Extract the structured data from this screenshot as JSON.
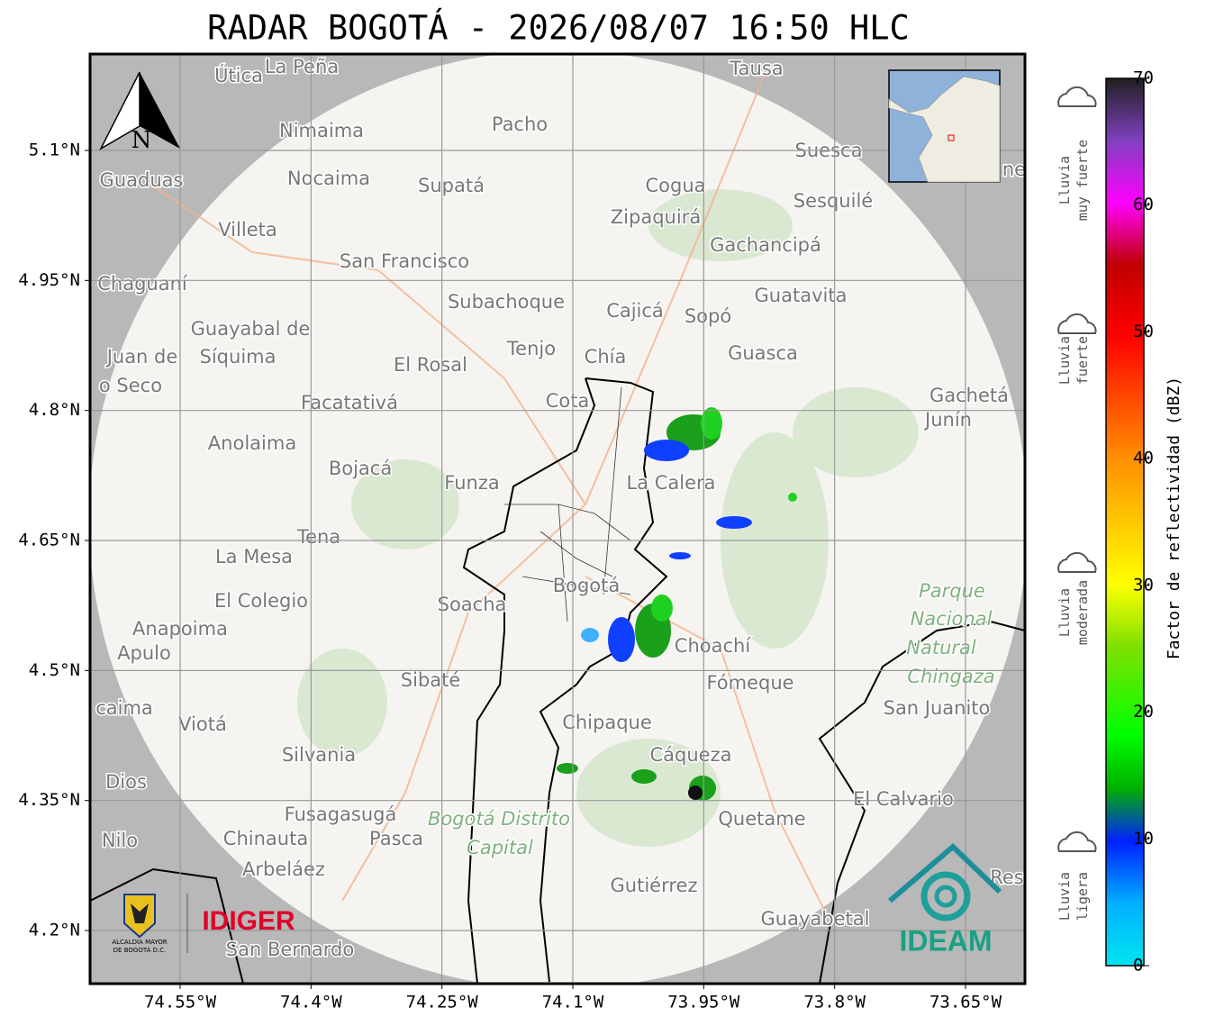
{
  "title": "RADAR BOGOTÁ - 2026/08/07 16:50 HLC",
  "north": "N",
  "lat_ticks": [
    {
      "value": 5.1,
      "label": "5.1°N"
    },
    {
      "value": 4.95,
      "label": "4.95°N"
    },
    {
      "value": 4.8,
      "label": "4.8°N"
    },
    {
      "value": 4.65,
      "label": "4.65°N"
    },
    {
      "value": 4.5,
      "label": "4.5°N"
    },
    {
      "value": 4.35,
      "label": "4.35°N"
    },
    {
      "value": 4.2,
      "label": "4.2°N"
    }
  ],
  "lon_ticks": [
    {
      "value": -74.55,
      "label": "74.55°W"
    },
    {
      "value": -74.4,
      "label": "74.4°W"
    },
    {
      "value": -74.25,
      "label": "74.25°W"
    },
    {
      "value": -74.1,
      "label": "74.1°W"
    },
    {
      "value": -73.95,
      "label": "73.95°W"
    },
    {
      "value": -73.8,
      "label": "73.8°W"
    },
    {
      "value": -73.65,
      "label": "73.65°W"
    }
  ],
  "colorbar": {
    "label": "Factor de reflectividad (dBZ)",
    "ticks": [
      0,
      10,
      20,
      30,
      40,
      50,
      60,
      70
    ]
  },
  "legend": [
    {
      "lines": [
        "Lluvia",
        "muy fuerte"
      ]
    },
    {
      "lines": [
        "Lluvia",
        "fuerte"
      ]
    },
    {
      "lines": [
        "Lluvia",
        "moderada"
      ]
    },
    {
      "lines": [
        "Lluvia",
        "ligera"
      ]
    }
  ],
  "logos": {
    "idiger": "IDIGER",
    "alcaldia": [
      "ALCALDÍA MAYOR",
      "DE BOGOTÁ D.C."
    ],
    "ideam": "IDEAM"
  },
  "places": [
    {
      "label": "Útica"
    },
    {
      "label": "La Peña"
    },
    {
      "label": "Tausa"
    },
    {
      "label": "Pacho"
    },
    {
      "label": "Nimaima"
    },
    {
      "label": "Guaduas"
    },
    {
      "label": "Nocaima"
    },
    {
      "label": "Supatá"
    },
    {
      "label": "Cogua"
    },
    {
      "label": "Suesca"
    },
    {
      "label": "Sesquilé"
    },
    {
      "label": "Zipaquirá"
    },
    {
      "label": "Villeta"
    },
    {
      "label": "Gachancipá"
    },
    {
      "label": "San Francisco"
    },
    {
      "label": "Chaguaní"
    },
    {
      "label": "Guatavita"
    },
    {
      "label": "Subachoque"
    },
    {
      "label": "Cajicá"
    },
    {
      "label": "Sopó"
    },
    {
      "label": "Guayabal de"
    },
    {
      "label": "Síquima"
    },
    {
      "label": "Juan de"
    },
    {
      "label": "o Seco"
    },
    {
      "label": "Tenjo"
    },
    {
      "label": "Chía"
    },
    {
      "label": "Guasca"
    },
    {
      "label": "El Rosal"
    },
    {
      "label": "Facatativá"
    },
    {
      "label": "Cota"
    },
    {
      "label": "Gachetá"
    },
    {
      "label": "Junín"
    },
    {
      "label": "Anolaima"
    },
    {
      "label": "Bojacá"
    },
    {
      "label": "Funza"
    },
    {
      "label": "La Calera"
    },
    {
      "label": "Tena"
    },
    {
      "label": "La Mesa"
    },
    {
      "label": "Bogotá"
    },
    {
      "label": "El Colegio"
    },
    {
      "label": "Soacha"
    },
    {
      "label": "Anapoima"
    },
    {
      "label": "Apulo"
    },
    {
      "label": "Choachí"
    },
    {
      "label": "Sibaté"
    },
    {
      "label": "Fómeque"
    },
    {
      "label": "San Juanito"
    },
    {
      "label": "caima"
    },
    {
      "label": "Viotá"
    },
    {
      "label": "Chipaque"
    },
    {
      "label": "Silvania"
    },
    {
      "label": "Cáqueza"
    },
    {
      "label": "Dios"
    },
    {
      "label": "El Calvario"
    },
    {
      "label": "Fusagasugá"
    },
    {
      "label": "Quetame"
    },
    {
      "label": "Nilo"
    },
    {
      "label": "Chinauta"
    },
    {
      "label": "Pasca"
    },
    {
      "label": "Arbeláez"
    },
    {
      "label": "Gutiérrez"
    },
    {
      "label": "Guayabetal"
    },
    {
      "label": "San Bernardo"
    },
    {
      "label": "Res"
    },
    {
      "label": "ne"
    }
  ],
  "park": [
    {
      "label": "Parque"
    },
    {
      "label": "Nacional"
    },
    {
      "label": "Natural"
    },
    {
      "label": "Chingaza"
    },
    {
      "label": "Bogotá Distrito"
    },
    {
      "label": "Capital"
    }
  ]
}
